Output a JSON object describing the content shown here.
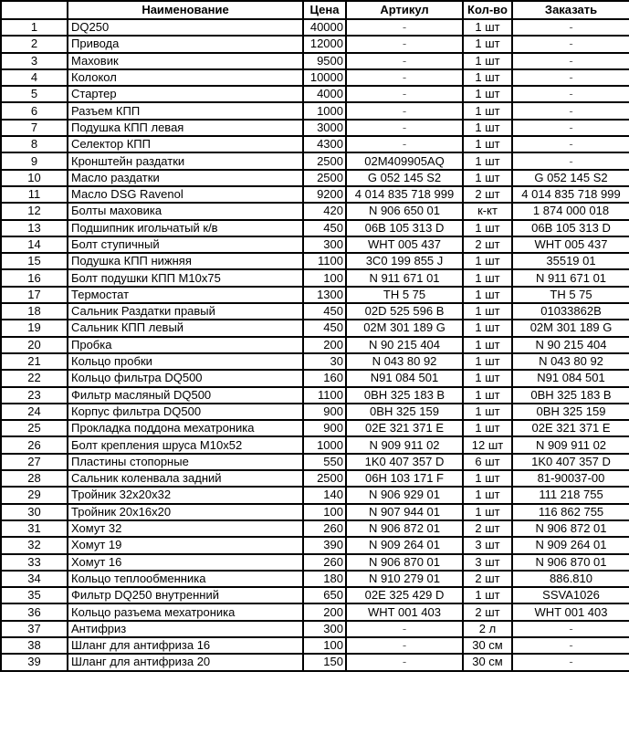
{
  "headers": [
    "",
    "Наименование",
    "Цена",
    "Артикул",
    "Кол-во",
    "Заказать"
  ],
  "rows": [
    [
      "1",
      "DQ250",
      "40000",
      "-",
      "1 шт",
      "-"
    ],
    [
      "2",
      "Привода",
      "12000",
      "-",
      "1 шт",
      "-"
    ],
    [
      "3",
      "Маховик",
      "9500",
      "-",
      "1 шт",
      "-"
    ],
    [
      "4",
      "Колокол",
      "10000",
      "-",
      "1 шт",
      "-"
    ],
    [
      "5",
      "Стартер",
      "4000",
      "-",
      "1 шт",
      "-"
    ],
    [
      "6",
      "Разъем КПП",
      "1000",
      "-",
      "1 шт",
      "-"
    ],
    [
      "7",
      "Подушка КПП левая",
      "3000",
      "-",
      "1 шт",
      "-"
    ],
    [
      "8",
      "Селектор КПП",
      "4300",
      "-",
      "1 шт",
      "-"
    ],
    [
      "9",
      "Кронштейн раздатки",
      "2500",
      "02M409905AQ",
      "1 шт",
      "-"
    ],
    [
      "10",
      "Масло раздатки",
      "2500",
      "G 052 145 S2",
      "1 шт",
      "G 052 145 S2"
    ],
    [
      "11",
      "Масло DSG Ravenol",
      "9200",
      "4 014 835 718 999",
      "2 шт",
      "4 014 835 718 999"
    ],
    [
      "12",
      "Болты маховика",
      "420",
      "N 906 650 01",
      "к-кт",
      "1 874 000 018"
    ],
    [
      "13",
      "Подшипник игольчатый к/в",
      "450",
      "06B 105 313 D",
      "1 шт",
      "06B 105 313 D"
    ],
    [
      "14",
      "Болт ступичный",
      "300",
      "WHT 005 437",
      "2 шт",
      "WHT 005 437"
    ],
    [
      "15",
      "Подушка КПП нижняя",
      "1100",
      "3C0 199 855 J",
      "1 шт",
      "35519 01"
    ],
    [
      "16",
      "Болт подушки КПП M10x75",
      "100",
      "N 911 671 01",
      "1 шт",
      "N 911 671 01"
    ],
    [
      "17",
      "Термостат",
      "1300",
      "TH 5 75",
      "1 шт",
      "TH 5 75"
    ],
    [
      "18",
      "Сальник Раздатки правый",
      "450",
      "02D 525 596 B",
      "1 шт",
      "01033862B"
    ],
    [
      "19",
      "Сальник КПП левый",
      "450",
      "02M 301 189 G",
      "1 шт",
      "02M 301 189 G"
    ],
    [
      "20",
      "Пробка",
      "200",
      "N 90 215 404",
      "1 шт",
      "N 90 215 404"
    ],
    [
      "21",
      "Кольцо пробки",
      "30",
      "N 043 80 92",
      "1 шт",
      "N 043 80 92"
    ],
    [
      "22",
      "Кольцо фильтра DQ500",
      "160",
      "N91 084 501",
      "1 шт",
      "N91 084 501"
    ],
    [
      "23",
      "Фильтр масляный DQ500",
      "1100",
      "0BH 325 183 B",
      "1 шт",
      "0BH 325 183 B"
    ],
    [
      "24",
      "Корпус фильтра DQ500",
      "900",
      "0BH 325 159",
      "1 шт",
      "0BH 325 159"
    ],
    [
      "25",
      "Прокладка поддона мехатроника",
      "900",
      "02E 321 371 E",
      "1 шт",
      "02E 321 371 E"
    ],
    [
      "26",
      "Болт крепления шруса M10x52",
      "1000",
      "N 909 911 02",
      "12 шт",
      "N 909 911 02"
    ],
    [
      "27",
      "Пластины стопорные",
      "550",
      "1K0 407 357 D",
      "6 шт",
      "1K0 407 357 D"
    ],
    [
      "28",
      "Сальник коленвала задний",
      "2500",
      "06H 103 171 F",
      "1 шт",
      "81-90037-00"
    ],
    [
      "29",
      "Тройник 32x20x32",
      "140",
      "N 906 929 01",
      "1 шт",
      "111 218 755"
    ],
    [
      "30",
      "Тройник 20x16x20",
      "100",
      "N 907 944 01",
      "1 шт",
      "116 862 755"
    ],
    [
      "31",
      "Хомут 32",
      "260",
      "N 906 872 01",
      "2 шт",
      "N 906 872 01"
    ],
    [
      "32",
      "Хомут 19",
      "390",
      "N 909 264 01",
      "3 шт",
      "N 909 264 01"
    ],
    [
      "33",
      "Хомут 16",
      "260",
      "N 906 870 01",
      "3 шт",
      "N 906 870 01"
    ],
    [
      "34",
      "Кольцо теплообменника",
      "180",
      "N 910 279 01",
      "2 шт",
      "886.810"
    ],
    [
      "35",
      "Фильтр DQ250 внутренний",
      "650",
      "02E 325 429 D",
      "1 шт",
      "SSVA1026"
    ],
    [
      "36",
      "Кольцо разъема мехатроника",
      "200",
      "WHT 001 403",
      "2 шт",
      "WHT 001 403"
    ],
    [
      "37",
      "Антифриз",
      "300",
      "-",
      "2 л",
      "-"
    ],
    [
      "38",
      "Шланг для антифриза 16",
      "100",
      "-",
      "30 см",
      "-"
    ],
    [
      "39",
      "Шланг для антифриза 20",
      "150",
      "-",
      "30 см",
      "-"
    ]
  ]
}
